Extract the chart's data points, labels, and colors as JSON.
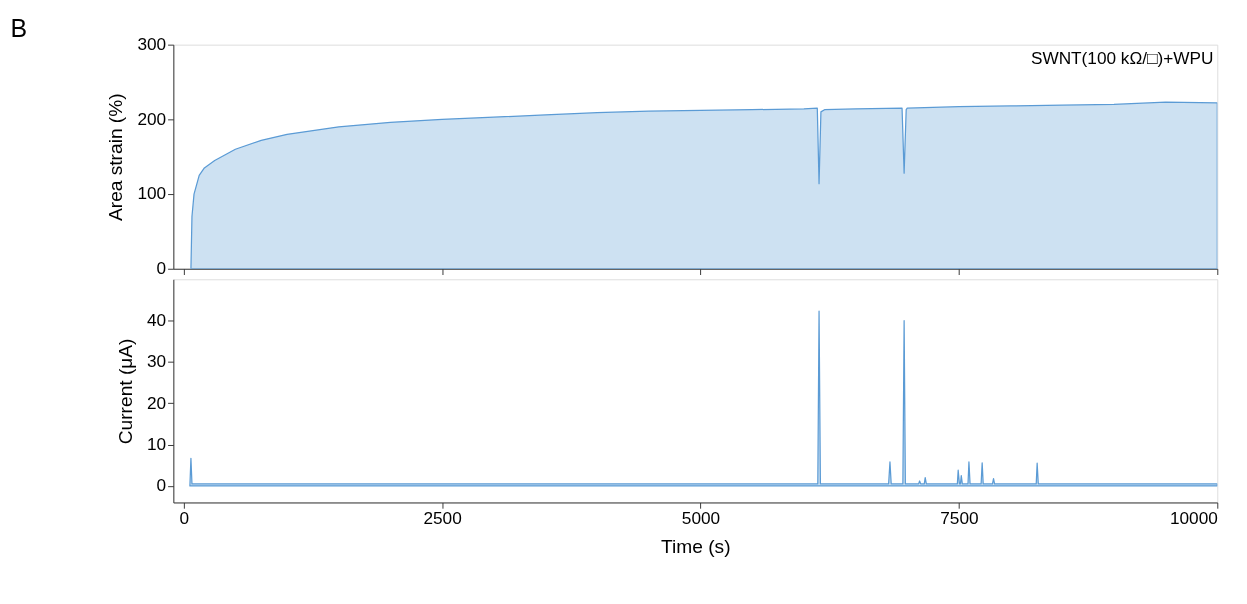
{
  "chart_data": [
    {
      "type": "area",
      "title": "B",
      "ylabel": "Area strain (%)",
      "annotations": [
        "SWNT(100 kΩ/□)+WPU"
      ],
      "tick_labels": "y",
      "xlim": [
        -100,
        10000
      ],
      "xticks": [
        {
          "value": 0,
          "label": null
        },
        {
          "value": 2500,
          "label": null
        },
        {
          "value": 5000,
          "label": null
        },
        {
          "value": 7500,
          "label": null
        },
        {
          "value": 10000,
          "label": null
        }
      ],
      "ylim": [
        0,
        300
      ],
      "yticks": [
        0,
        100,
        200,
        300
      ],
      "series": [
        {
          "color": "#5b9bd5",
          "x": [
            70,
            80,
            100,
            150,
            200,
            300,
            500,
            750,
            1000,
            1500,
            2000,
            2500,
            3000,
            3500,
            4000,
            4500,
            5000,
            5500,
            6000,
            6130,
            6147,
            6165,
            6200,
            6500,
            6950,
            6970,
            6990,
            7000,
            7500,
            8000,
            8500,
            9000,
            9500,
            10000
          ],
          "values": [
            0,
            70,
            100,
            125,
            135,
            145,
            160,
            172,
            180,
            190,
            196,
            200,
            203,
            206,
            209,
            211,
            212,
            213,
            214,
            215,
            114,
            210,
            213,
            214,
            215,
            128,
            213,
            215,
            217,
            218,
            219,
            220,
            223,
            222
          ]
        }
      ]
    },
    {
      "type": "area",
      "xlabel": "Time (s)",
      "ylabel": "Current (μA)",
      "xlim": [
        -100,
        10000
      ],
      "xticks": [
        0,
        2500,
        5000,
        7500,
        10000
      ],
      "ylim": [
        -4,
        50
      ],
      "yticks": [
        0,
        10,
        20,
        30,
        40
      ],
      "series": [
        {
          "color": "#5b9bd5",
          "x": [
            60,
            70,
            80,
            6135,
            6147,
            6160,
            6820,
            6833,
            6845,
            6958,
            6970,
            6982,
            7110,
            7120,
            7130,
            7165,
            7174,
            7185,
            7485,
            7493,
            7505,
            7515,
            7523,
            7533,
            7588,
            7597,
            7608,
            7715,
            7725,
            7735,
            7825,
            7835,
            7845,
            8248,
            8257,
            8268,
            10000
          ],
          "values": [
            0,
            6.7,
            0.5,
            0.5,
            42.3,
            0.5,
            0.5,
            5.8,
            0.5,
            0.5,
            40,
            0.5,
            0.5,
            1.2,
            0.5,
            0.5,
            2.0,
            0.5,
            0.5,
            3.8,
            0.5,
            0.5,
            2.5,
            0.5,
            0.5,
            5.8,
            0.5,
            0.5,
            5.6,
            0.5,
            0.5,
            1.8,
            0.5,
            0.5,
            5.5,
            0.5,
            0.5
          ]
        }
      ]
    }
  ]
}
